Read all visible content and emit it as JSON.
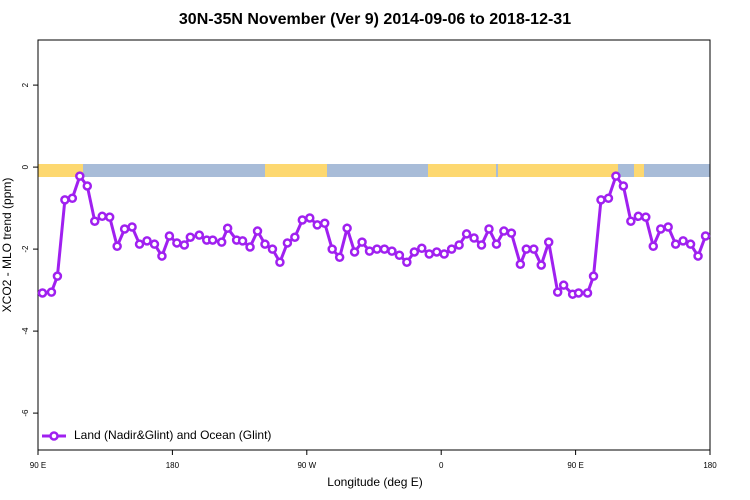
{
  "chart_data": {
    "type": "line",
    "title": "30N-35N November (Ver 9)   2014-09-06 to 2018-12-31",
    "x_label": "Longitude (deg E)",
    "y_label": "XCO2 - MLO trend (ppm)",
    "xlim": [
      90,
      540
    ],
    "ylim": [
      -6.9,
      3.1
    ],
    "xticks": [
      {
        "value": 90,
        "label": "90 E"
      },
      180,
      {
        "value": 270,
        "label": "90 W"
      },
      {
        "value": 360,
        "label": "0"
      },
      {
        "value": 450,
        "label": "90 E"
      },
      {
        "value": 540,
        "label": "180"
      }
    ],
    "yticks": [
      -6,
      -4,
      -2,
      0,
      2
    ],
    "legend": "bottom-left",
    "x": [
      93,
      99,
      103,
      108,
      113,
      118,
      123,
      128,
      133,
      138,
      143,
      148,
      153,
      158,
      163,
      168,
      173,
      178,
      183,
      188,
      192,
      198,
      203,
      207,
      213,
      217,
      223,
      227,
      232,
      237,
      242,
      247,
      252,
      257,
      262,
      267,
      272,
      277,
      282,
      287,
      292,
      297,
      302,
      307,
      312,
      317,
      322,
      327,
      332,
      337,
      342,
      347,
      352,
      357,
      362,
      367,
      372,
      377,
      382,
      387,
      392,
      397,
      402,
      407,
      413,
      417,
      422,
      427,
      432,
      438,
      442,
      448,
      452,
      458,
      462,
      467,
      472,
      477,
      482,
      487,
      492,
      497,
      502,
      507,
      512,
      517,
      522,
      527,
      532,
      537
    ],
    "series": [
      {
        "name": "Land (Nadir&Glint) and Ocean (Glint)",
        "color": "#a020f0",
        "values": [
          -3.07,
          -3.05,
          -2.66,
          -0.8,
          -0.76,
          -0.22,
          -0.46,
          -1.32,
          -1.2,
          -1.22,
          -1.93,
          -1.51,
          -1.46,
          -1.88,
          -1.8,
          -1.88,
          -2.17,
          -1.68,
          -1.85,
          -1.9,
          -1.71,
          -1.66,
          -1.78,
          -1.78,
          -1.83,
          -1.49,
          -1.78,
          -1.8,
          -1.95,
          -1.56,
          -1.88,
          -2.0,
          -2.32,
          -1.85,
          -1.71,
          -1.29,
          -1.24,
          -1.41,
          -1.37,
          -2.0,
          -2.2,
          -1.49,
          -2.07,
          -1.83,
          -2.05,
          -2.0,
          -2.0,
          -2.05,
          -2.15,
          -2.32,
          -2.07,
          -1.98,
          -2.12,
          -2.07,
          -2.12,
          -2.0,
          -1.9,
          -1.63,
          -1.73,
          -1.9,
          -1.51,
          -1.88,
          -1.56,
          -1.61,
          -2.37,
          -2.0,
          -2.0,
          -2.39,
          -1.83,
          -3.05,
          -2.88,
          -3.1,
          -3.07,
          -3.07,
          -2.66,
          -0.8,
          -0.76,
          -0.22,
          -0.46,
          -1.32,
          -1.2,
          -1.22,
          -1.93,
          -1.51,
          -1.46,
          -1.88,
          -1.8,
          -1.88,
          -2.17,
          -1.68
        ]
      }
    ]
  }
}
